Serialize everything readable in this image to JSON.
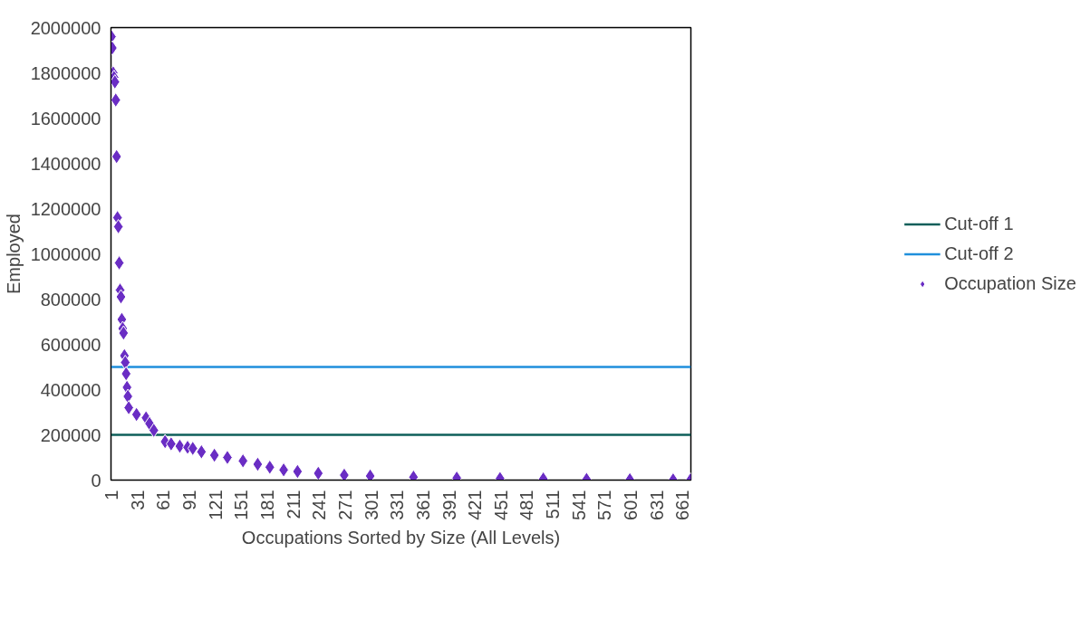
{
  "chart_data": {
    "type": "scatter",
    "xlabel": "Occupations Sorted by Size (All Levels)",
    "ylabel": "Employed",
    "xlim": [
      0.5,
      670.5
    ],
    "xticks": [
      1,
      31,
      61,
      91,
      121,
      151,
      181,
      211,
      241,
      271,
      301,
      331,
      361,
      391,
      421,
      451,
      481,
      511,
      541,
      571,
      601,
      631,
      661
    ],
    "ylim": [
      0,
      2000000
    ],
    "yticks": [
      0,
      200000,
      400000,
      600000,
      800000,
      1000000,
      1200000,
      1400000,
      1600000,
      1800000,
      2000000
    ],
    "grid": false,
    "legend": "right",
    "marker": "diamond",
    "ref_lines": [
      {
        "axis": "y",
        "value": 200000,
        "label": "Cut-off 1",
        "color": "#0e5f5a"
      },
      {
        "axis": "y",
        "value": 500000,
        "label": "Cut-off 2",
        "color": "#1f8fdc"
      }
    ],
    "series": [
      {
        "name": "Occupation Size",
        "color": "#6a2dc4",
        "x": [
          1,
          2,
          3,
          4,
          5,
          6,
          7,
          8,
          9,
          10,
          11,
          12,
          13,
          14,
          15,
          16,
          17,
          18,
          19,
          20,
          21,
          30,
          41,
          45,
          50,
          63,
          70,
          80,
          89,
          95,
          105,
          120,
          135,
          153,
          170,
          184,
          200,
          216,
          240,
          270,
          300,
          350,
          400,
          450,
          500,
          550,
          600,
          650,
          670
        ],
        "values": [
          1960000,
          1910000,
          1800000,
          1780000,
          1760000,
          1680000,
          1430000,
          1160000,
          1120000,
          960000,
          840000,
          810000,
          710000,
          670000,
          650000,
          550000,
          520000,
          470000,
          410000,
          370000,
          320000,
          290000,
          275000,
          250000,
          220000,
          170000,
          160000,
          150000,
          145000,
          140000,
          125000,
          110000,
          100000,
          85000,
          70000,
          57000,
          45000,
          38000,
          30000,
          22000,
          18000,
          13000,
          9000,
          7000,
          5000,
          3000,
          2000,
          1000,
          1000
        ]
      }
    ]
  }
}
